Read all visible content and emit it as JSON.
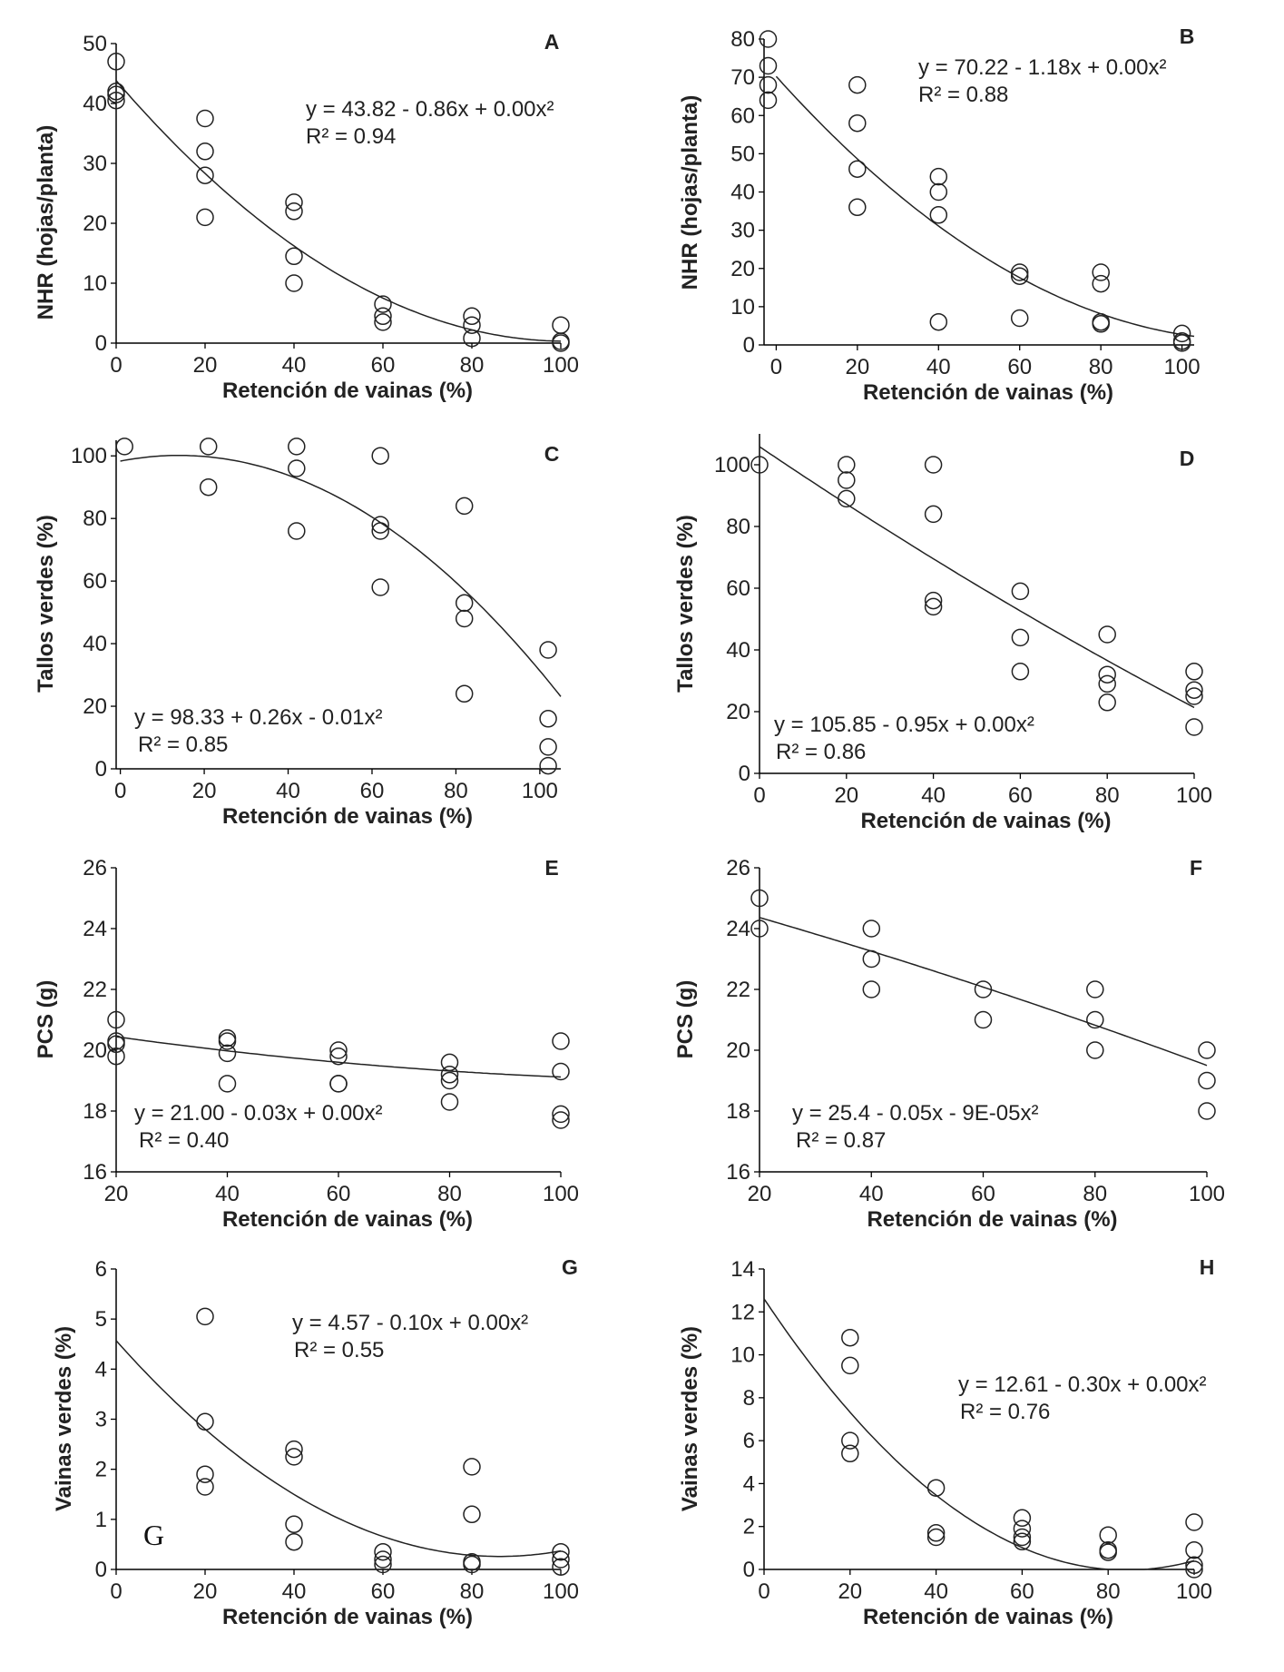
{
  "chart_data": [
    {
      "panel": "A",
      "type": "scatter",
      "title": "",
      "xlabel": "Retención de vainas (%)",
      "ylabel": "NHR (hojas/planta)",
      "xlim": [
        0,
        100
      ],
      "ylim": [
        0,
        50
      ],
      "xticks": [
        "0",
        "20",
        "40",
        "60",
        "80",
        "100"
      ],
      "yticks": [
        "0",
        "10",
        "20",
        "30",
        "40",
        "50"
      ],
      "points": [
        [
          0,
          47
        ],
        [
          0,
          42
        ],
        [
          0,
          41.5
        ],
        [
          0,
          40.5
        ],
        [
          20,
          37.5
        ],
        [
          20,
          32
        ],
        [
          20,
          28
        ],
        [
          20,
          21
        ],
        [
          40,
          23.5
        ],
        [
          40,
          22
        ],
        [
          40,
          14.5
        ],
        [
          40,
          10
        ],
        [
          60,
          6.5
        ],
        [
          60,
          4.5
        ],
        [
          60,
          3.5
        ],
        [
          80,
          4.5
        ],
        [
          80,
          3
        ],
        [
          80,
          0.8
        ],
        [
          100,
          3
        ],
        [
          100,
          0.3
        ],
        [
          100,
          0
        ]
      ],
      "fit": {
        "type": "poly2",
        "coef": [
          43.82,
          -0.86,
          0.00425
        ]
      },
      "equation": "y = 43.82 - 0.86x + 0.00x²",
      "r2": "R² = 0.94"
    },
    {
      "panel": "B",
      "type": "scatter",
      "title": "",
      "xlabel": "Retención de vainas (%)",
      "ylabel": "NHR (hojas/planta)",
      "xlim": [
        -3,
        103
      ],
      "ylim": [
        0,
        80
      ],
      "xticks": [
        "0",
        "20",
        "40",
        "60",
        "80",
        "100"
      ],
      "yticks": [
        "0",
        "10",
        "20",
        "30",
        "40",
        "50",
        "60",
        "70",
        "80"
      ],
      "points": [
        [
          -2,
          80
        ],
        [
          -2,
          73
        ],
        [
          -2,
          68
        ],
        [
          -2,
          64
        ],
        [
          20,
          68
        ],
        [
          20,
          58
        ],
        [
          20,
          46
        ],
        [
          20,
          36
        ],
        [
          40,
          44
        ],
        [
          40,
          40
        ],
        [
          40,
          34
        ],
        [
          40,
          6
        ],
        [
          60,
          19
        ],
        [
          60,
          18
        ],
        [
          60,
          7
        ],
        [
          80,
          19
        ],
        [
          80,
          16
        ],
        [
          80,
          6
        ],
        [
          80,
          5.5
        ],
        [
          100,
          3
        ],
        [
          100,
          1
        ],
        [
          100,
          0.5
        ]
      ],
      "fit": {
        "type": "poly2",
        "coef": [
          70.22,
          -1.18,
          0.00505
        ]
      },
      "equation": "y = 70.22 - 1.18x + 0.00x²",
      "r2": "R² = 0.88"
    },
    {
      "panel": "C",
      "type": "scatter",
      "title": "",
      "xlabel": "Retención de vainas (%)",
      "ylabel": "Tallos verdes (%)",
      "xlim": [
        -1,
        105
      ],
      "ylim": [
        0,
        105
      ],
      "xticks": [
        "0",
        "20",
        "40",
        "60",
        "80",
        "100"
      ],
      "yticks": [
        "0",
        "20",
        "40",
        "60",
        "80",
        "100"
      ],
      "points": [
        [
          1,
          103
        ],
        [
          21,
          103
        ],
        [
          21,
          90
        ],
        [
          42,
          103
        ],
        [
          42,
          96
        ],
        [
          42,
          76
        ],
        [
          62,
          100
        ],
        [
          62,
          78
        ],
        [
          62,
          76
        ],
        [
          62,
          58
        ],
        [
          82,
          84
        ],
        [
          82,
          53
        ],
        [
          82,
          48
        ],
        [
          82,
          24
        ],
        [
          102,
          38
        ],
        [
          102,
          16
        ],
        [
          102,
          7
        ],
        [
          102,
          1
        ]
      ],
      "fit": {
        "type": "poly2",
        "coef": [
          98.33,
          0.26,
          -0.0093
        ]
      },
      "equation": "y = 98.33 + 0.26x - 0.01x²",
      "r2": "R² = 0.85"
    },
    {
      "panel": "D",
      "type": "scatter",
      "title": "",
      "xlabel": "Retención de vainas (%)",
      "ylabel": "Tallos verdes (%)",
      "xlim": [
        0,
        100
      ],
      "ylim": [
        0,
        110
      ],
      "xticks": [
        "0",
        "20",
        "40",
        "60",
        "80",
        "100"
      ],
      "yticks": [
        "0",
        "20",
        "40",
        "60",
        "80",
        "100"
      ],
      "points": [
        [
          0,
          100
        ],
        [
          20,
          100
        ],
        [
          20,
          95
        ],
        [
          20,
          89
        ],
        [
          40,
          100
        ],
        [
          40,
          84
        ],
        [
          40,
          56
        ],
        [
          40,
          54
        ],
        [
          60,
          59
        ],
        [
          60,
          44
        ],
        [
          60,
          33
        ],
        [
          80,
          45
        ],
        [
          80,
          32
        ],
        [
          80,
          29
        ],
        [
          80,
          23
        ],
        [
          100,
          33
        ],
        [
          100,
          27
        ],
        [
          100,
          25
        ],
        [
          100,
          15
        ]
      ],
      "fit": {
        "type": "poly2",
        "coef": [
          105.85,
          -0.95,
          0.00105
        ]
      },
      "equation": "y = 105.85 - 0.95x + 0.00x²",
      "r2": "R² = 0.86"
    },
    {
      "panel": "E",
      "type": "scatter",
      "title": "",
      "xlabel": "Retención de vainas (%)",
      "ylabel": "PCS (g)",
      "xlim": [
        20,
        100
      ],
      "ylim": [
        16,
        26
      ],
      "xticks": [
        "20",
        "40",
        "60",
        "80",
        "100"
      ],
      "yticks": [
        "16",
        "18",
        "20",
        "22",
        "24",
        "26"
      ],
      "points": [
        [
          20,
          21
        ],
        [
          20,
          20.3
        ],
        [
          20,
          20.2
        ],
        [
          20,
          19.8
        ],
        [
          40,
          20.4
        ],
        [
          40,
          20.3
        ],
        [
          40,
          19.9
        ],
        [
          40,
          18.9
        ],
        [
          60,
          20
        ],
        [
          60,
          19.8
        ],
        [
          60,
          18.9
        ],
        [
          60,
          18.9
        ],
        [
          80,
          19.6
        ],
        [
          80,
          19.2
        ],
        [
          80,
          19
        ],
        [
          80,
          18.3
        ],
        [
          100,
          20.3
        ],
        [
          100,
          19.3
        ],
        [
          100,
          17.9
        ],
        [
          100,
          17.7
        ]
      ],
      "fit": {
        "type": "poly2",
        "coef": [
          21.0,
          -0.03,
          0.000112
        ]
      },
      "equation": "y = 21.00 - 0.03x + 0.00x²",
      "r2": "R² = 0.40"
    },
    {
      "panel": "F",
      "type": "scatter",
      "title": "",
      "xlabel": "Retención de vainas (%)",
      "ylabel": "PCS (g)",
      "xlim": [
        20,
        100
      ],
      "ylim": [
        16,
        26
      ],
      "xticks": [
        "20",
        "40",
        "60",
        "80",
        "100"
      ],
      "yticks": [
        "16",
        "18",
        "20",
        "22",
        "24",
        "26"
      ],
      "points": [
        [
          20,
          25
        ],
        [
          20,
          24
        ],
        [
          40,
          24
        ],
        [
          40,
          23
        ],
        [
          40,
          22
        ],
        [
          60,
          22
        ],
        [
          60,
          21
        ],
        [
          80,
          22
        ],
        [
          80,
          21
        ],
        [
          80,
          20
        ],
        [
          100,
          20
        ],
        [
          100,
          19
        ],
        [
          100,
          18
        ]
      ],
      "fit": {
        "type": "poly2",
        "coef": [
          25.4,
          -0.05,
          -9e-05
        ]
      },
      "equation": "y = 25.4 - 0.05x - 9E-05x²",
      "r2": "R² = 0.87"
    },
    {
      "panel": "G",
      "type": "scatter",
      "title": "",
      "xlabel": "Retención de vainas (%)",
      "ylabel": "Vainas verdes (%)",
      "xlim": [
        0,
        100
      ],
      "ylim": [
        0,
        6
      ],
      "xticks": [
        "0",
        "20",
        "40",
        "60",
        "80",
        "100"
      ],
      "yticks": [
        "0",
        "1",
        "2",
        "3",
        "4",
        "5",
        "6"
      ],
      "points": [
        [
          20,
          5.05
        ],
        [
          20,
          2.95
        ],
        [
          20,
          1.9
        ],
        [
          20,
          1.65
        ],
        [
          40,
          2.4
        ],
        [
          40,
          2.25
        ],
        [
          40,
          0.9
        ],
        [
          40,
          0.55
        ],
        [
          60,
          0.35
        ],
        [
          60,
          0.2
        ],
        [
          60,
          0.1
        ],
        [
          80,
          2.05
        ],
        [
          80,
          1.1
        ],
        [
          80,
          0.15
        ],
        [
          80,
          0.1
        ],
        [
          100,
          0.35
        ],
        [
          100,
          0.2
        ],
        [
          100,
          0.05
        ]
      ],
      "fit": {
        "type": "poly2",
        "coef": [
          4.57,
          -0.1,
          0.00058
        ]
      },
      "equation": "y = 4.57 - 0.10x + 0.00x²",
      "r2": "R² = 0.55",
      "annotation": "G"
    },
    {
      "panel": "H",
      "type": "scatter",
      "title": "",
      "xlabel": "Retención de vainas (%)",
      "ylabel": "Vainas verdes (%)",
      "xlim": [
        0,
        100
      ],
      "ylim": [
        0,
        14
      ],
      "xticks": [
        "0",
        "20",
        "40",
        "60",
        "80",
        "100"
      ],
      "yticks": [
        "0",
        "2",
        "4",
        "6",
        "8",
        "10",
        "12",
        "14"
      ],
      "points": [
        [
          20,
          10.8
        ],
        [
          20,
          9.5
        ],
        [
          20,
          6
        ],
        [
          20,
          5.4
        ],
        [
          40,
          3.8
        ],
        [
          40,
          1.7
        ],
        [
          40,
          1.5
        ],
        [
          60,
          2.4
        ],
        [
          60,
          1.9
        ],
        [
          60,
          1.5
        ],
        [
          60,
          1.3
        ],
        [
          80,
          1.6
        ],
        [
          80,
          0.9
        ],
        [
          80,
          0.8
        ],
        [
          100,
          2.2
        ],
        [
          100,
          0.9
        ],
        [
          100,
          0.2
        ],
        [
          100,
          0
        ]
      ],
      "fit": {
        "type": "poly2",
        "coef": [
          12.61,
          -0.3,
          0.00178
        ]
      },
      "equation": "y = 12.61 - 0.30x + 0.00x²",
      "r2": "R² = 0.76"
    }
  ]
}
